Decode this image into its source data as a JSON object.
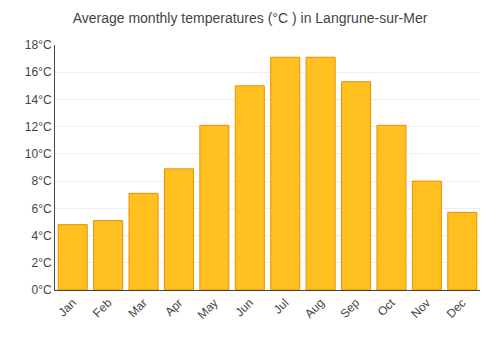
{
  "chart_data": {
    "type": "bar",
    "title": "Average monthly temperatures (°C ) in Langrune-sur-Mer",
    "categories": [
      "Jan",
      "Feb",
      "Mar",
      "Apr",
      "May",
      "Jun",
      "Jul",
      "Aug",
      "Sep",
      "Oct",
      "Nov",
      "Dec"
    ],
    "values": [
      4.8,
      5.1,
      7.1,
      8.9,
      12.1,
      15.0,
      17.1,
      17.1,
      15.3,
      12.1,
      8.0,
      5.7
    ],
    "color": "#FFC020",
    "ylim": [
      0,
      18
    ],
    "yticks": [
      {
        "value": 0,
        "label": "0°C"
      },
      {
        "value": 2,
        "label": "2°C"
      },
      {
        "value": 4,
        "label": "4°C"
      },
      {
        "value": 6,
        "label": "6°C"
      },
      {
        "value": 8,
        "label": "8°C"
      },
      {
        "value": 10,
        "label": "10°C"
      },
      {
        "value": 12,
        "label": "12°C"
      },
      {
        "value": 14,
        "label": "14°C"
      },
      {
        "value": 16,
        "label": "16°C"
      },
      {
        "value": 18,
        "label": "18°C"
      }
    ],
    "grid": true
  }
}
